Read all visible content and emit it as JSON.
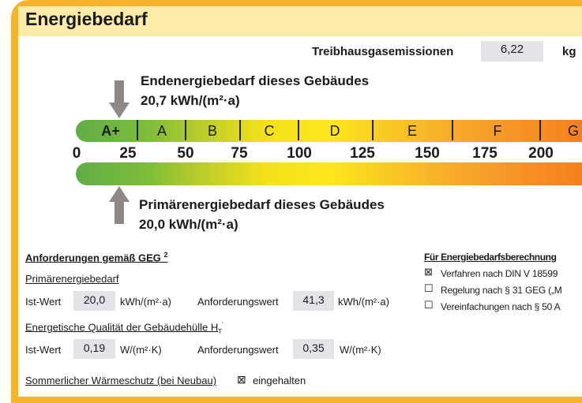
{
  "title": "Energiebedarf",
  "emissions": {
    "label": "Treibhausgasemissionen",
    "value": "6,22",
    "unit": "kg"
  },
  "end_energy": {
    "label": "Endenergiebedarf dieses Gebäudes",
    "value": "20,7 kWh/(m²·a)",
    "marker_value": 20.7
  },
  "primary_energy": {
    "label": "Primärenergiebedarf dieses Gebäudes",
    "value": "20,0 kWh/(m²·a)",
    "marker_value": 20.0
  },
  "scale": {
    "classes": [
      "A+",
      "A",
      "B",
      "C",
      "D",
      "E",
      "F",
      "G"
    ],
    "ticks": [
      "0",
      "25",
      "50",
      "75",
      "100",
      "125",
      "150",
      "175",
      "200"
    ]
  },
  "requirements": {
    "title": "Anforderungen gemäß GEG",
    "footnote": "2",
    "primary": {
      "heading": "Primärenergiebedarf",
      "ist_label": "Ist-Wert",
      "ist_value": "20,0",
      "unit": "kWh/(m²·a)",
      "req_label": "Anforderungswert",
      "req_value": "41,3",
      "req_unit": "kWh/(m²·a)"
    },
    "envelope": {
      "heading": "Energetische Qualität der Gebäudehülle H",
      "sub": "T",
      "prime": "'",
      "ist_label": "Ist-Wert",
      "ist_value": "0,19",
      "unit": "W/(m²·K)",
      "req_label": "Anforderungswert",
      "req_value": "0,35",
      "req_unit": "W/(m²·K)"
    },
    "summer": {
      "label": "Sommerlicher Wärmeschutz (bei Neubau)",
      "checked": true,
      "status": "eingehalten"
    }
  },
  "calc": {
    "title": "Für Energiebedarfsberechnung",
    "items": [
      {
        "label": "Verfahren nach DIN V 18599",
        "checked": true
      },
      {
        "label": "Regelung nach § 31 GEG („M",
        "checked": false
      },
      {
        "label": "Vereinfachungen nach § 50 A",
        "checked": false
      }
    ]
  }
}
